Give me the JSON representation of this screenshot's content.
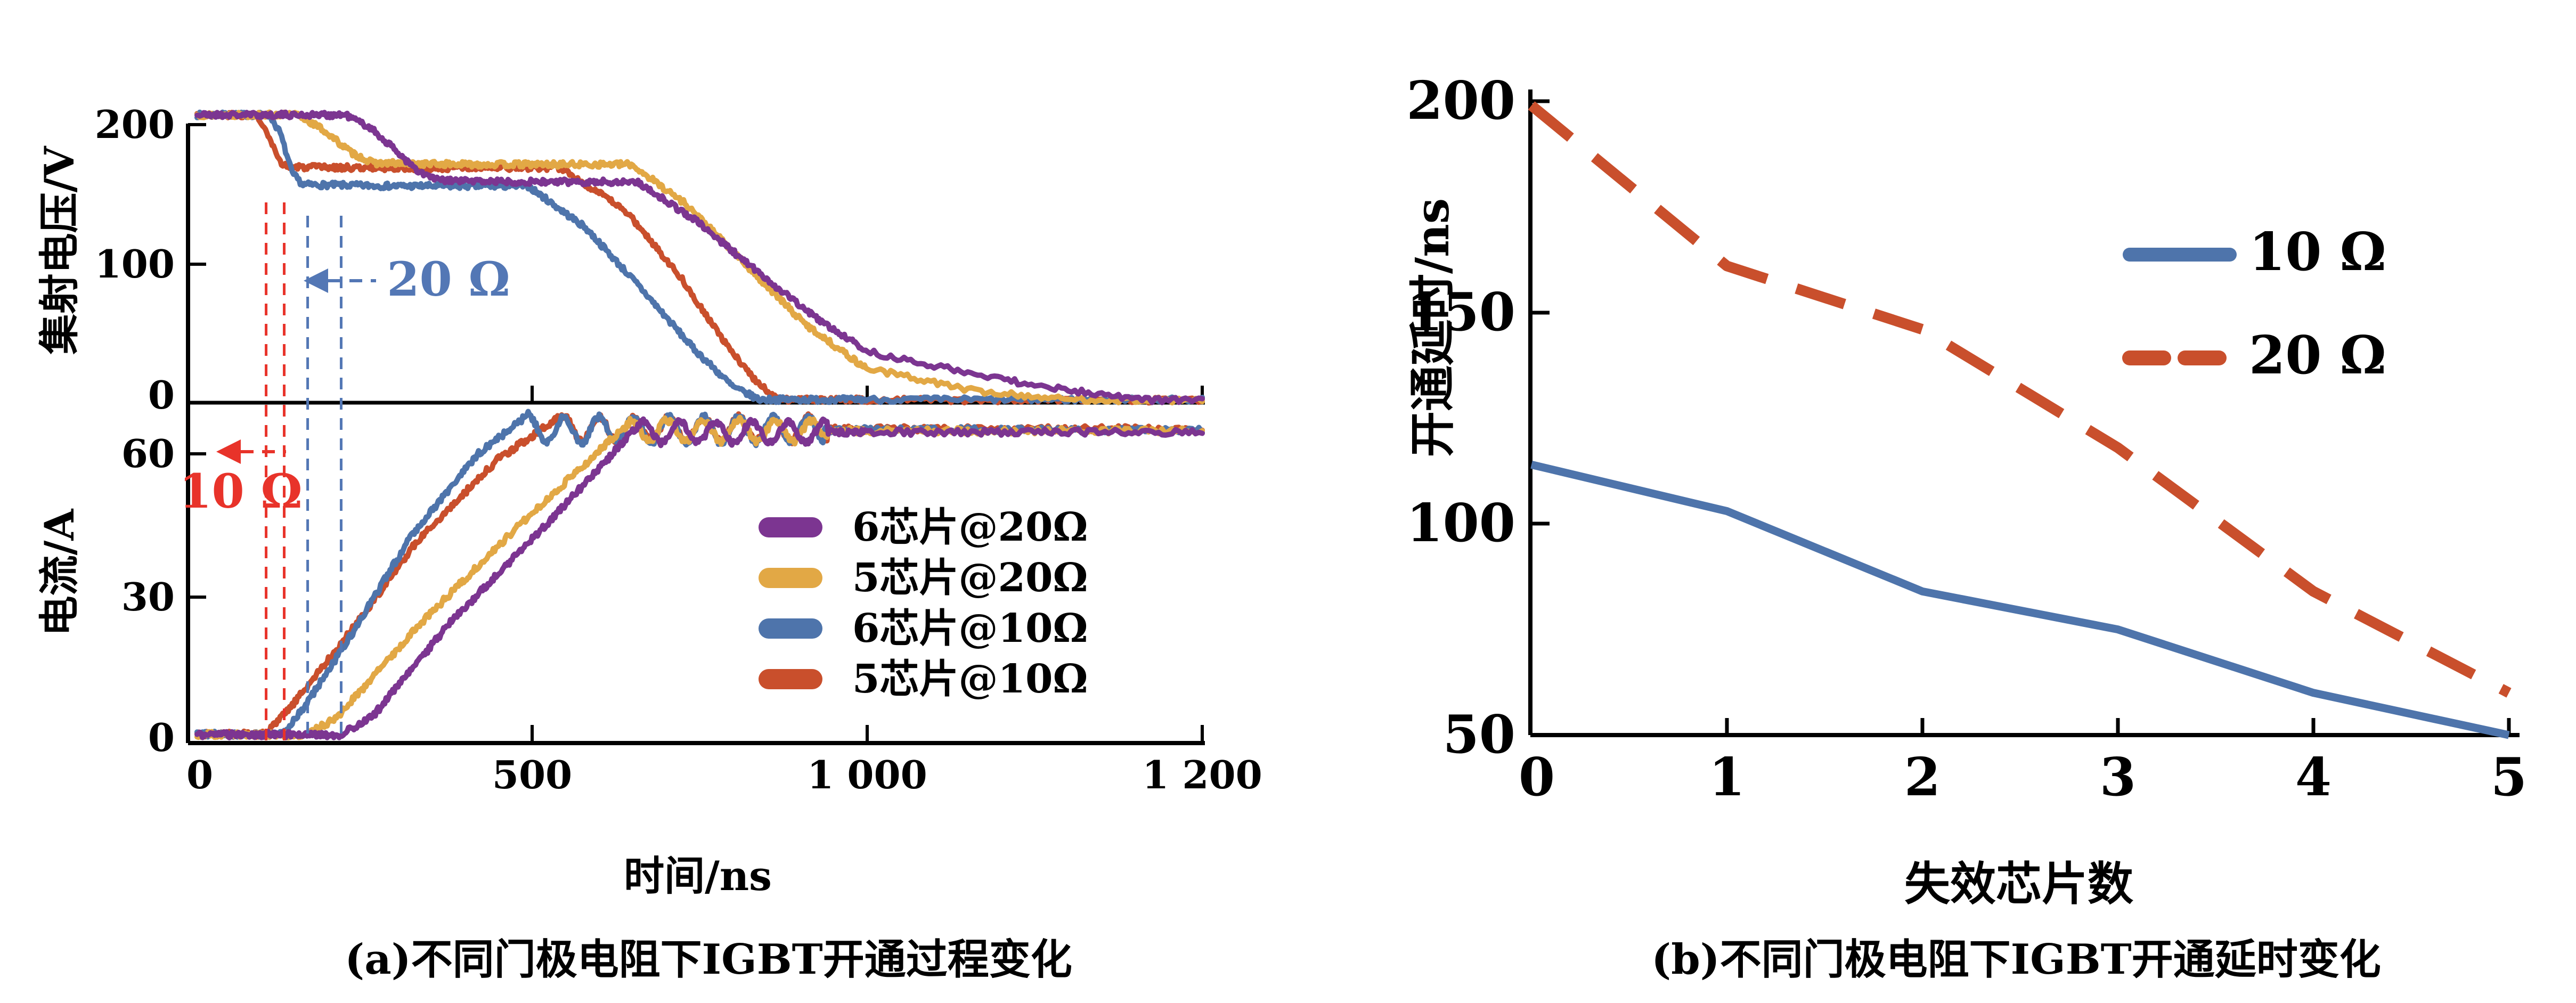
{
  "figure": {
    "type": "dual-panel scientific figure",
    "background": "#FFFFFF"
  },
  "colors": {
    "purple": "#7C3591",
    "gold": "#E2A845",
    "blue": "#4E74AB",
    "red": "#C94F2C",
    "annotation_red": "#E8332A",
    "annotation_blue": "#5377B5",
    "axis": "#000000"
  },
  "left_chart": {
    "caption": "(a)不同门极电阻下IGBT开通过程变化",
    "x_axis_label": "时间/ns",
    "voltage_axis_label": "集射电压/V",
    "current_axis_label": "电流/A",
    "voltage_tick_labels": [
      "200",
      "100",
      "0"
    ],
    "current_tick_labels": [
      "60",
      "30",
      "0"
    ],
    "x_tick_labels": [
      "0",
      "500",
      "1 000",
      "1 200"
    ],
    "legend": {
      "items": [
        {
          "label": "6芯片@20Ω",
          "color_key": "purple"
        },
        {
          "label": "5芯片@20Ω",
          "color_key": "gold"
        },
        {
          "label": "6芯片@10Ω",
          "color_key": "blue"
        },
        {
          "label": "5芯片@10Ω",
          "color_key": "red"
        }
      ]
    },
    "annotations": [
      {
        "text": "10 Ω",
        "color_key": "annotation_red",
        "marks_times_ns": [
          103,
          130
        ]
      },
      {
        "text": "20 Ω",
        "color_key": "annotation_blue",
        "marks_times_ns": [
          165,
          215
        ]
      }
    ]
  },
  "right_chart": {
    "caption": "(b)不同门极电阻下IGBT开通延时变化",
    "x_axis_label": "失效芯片数",
    "y_axis_label": "开通延时/ns",
    "y_tick_labels": [
      "200",
      "150",
      "100",
      "50"
    ],
    "x_tick_labels": [
      "0",
      "1",
      "2",
      "3",
      "4",
      "5"
    ],
    "legend": {
      "items": [
        {
          "label": "10 Ω",
          "color_key": "blue",
          "style": "solid"
        },
        {
          "label": "20 Ω",
          "color_key": "red",
          "style": "dashed"
        }
      ]
    }
  },
  "chart_data": [
    {
      "id": "igbt-turn-on-waveforms",
      "type": "line",
      "title": "(a)不同门极电阻下IGBT开通过程变化",
      "xlabel": "时间/ns",
      "x_range_ns": [
        0,
        1200
      ],
      "x_ticks_ns": [
        0,
        500,
        1000,
        1200
      ],
      "panels": [
        {
          "name": "voltage",
          "ylabel": "集射电压/V",
          "yticks": [
            0,
            100,
            200
          ],
          "ylim": [
            0,
            215
          ]
        },
        {
          "name": "current",
          "ylabel": "电流/A",
          "yticks": [
            0,
            30,
            60
          ],
          "ylim": [
            0,
            71
          ]
        }
      ],
      "series": [
        {
          "id": "5chip-10ohm-voltage",
          "name": "5芯片@10Ω",
          "panel": "voltage",
          "color_key": "red",
          "seed": 3,
          "noise": 2.0,
          "points": [
            [
              0,
              207
            ],
            [
              88,
              207
            ],
            [
              106,
              192
            ],
            [
              122,
              174
            ],
            [
              136,
              169.5
            ],
            [
              300,
              169
            ],
            [
              543,
              169
            ],
            [
              640,
              138
            ],
            [
              720,
              92
            ],
            [
              790,
              42
            ],
            [
              840,
              13
            ],
            [
              870,
              3
            ],
            [
              1200,
              2.5
            ]
          ]
        },
        {
          "id": "6chip-10ohm-voltage",
          "name": "6芯片@10Ω",
          "panel": "voltage",
          "color_key": "blue",
          "seed": 7,
          "noise": 2.0,
          "points": [
            [
              0,
              207
            ],
            [
              108,
              207
            ],
            [
              124,
              194
            ],
            [
              142,
              165
            ],
            [
              158,
              157
            ],
            [
              300,
              156
            ],
            [
              494,
              156
            ],
            [
              580,
              126
            ],
            [
              660,
              84
            ],
            [
              740,
              40
            ],
            [
              800,
              12
            ],
            [
              839,
              3
            ],
            [
              1200,
              3
            ]
          ]
        },
        {
          "id": "5chip-20ohm-voltage",
          "name": "5芯片@20Ω",
          "panel": "voltage",
          "color_key": "gold",
          "seed": 13,
          "noise": 2.0,
          "points": [
            [
              0,
              207
            ],
            [
              150,
              207
            ],
            [
              186,
              197
            ],
            [
              230,
              180
            ],
            [
              262,
              172.5
            ],
            [
              400,
              171.5
            ],
            [
              648,
              171.5
            ],
            [
              730,
              143
            ],
            [
              820,
              99
            ],
            [
              905,
              58
            ],
            [
              990,
              28
            ],
            [
              1065,
              9
            ],
            [
              1120,
              3
            ],
            [
              1200,
              2.5
            ]
          ]
        },
        {
          "id": "6chip-20ohm-voltage",
          "name": "6芯片@20Ω",
          "panel": "voltage",
          "color_key": "purple",
          "seed": 21,
          "noise": 2.0,
          "points": [
            [
              0,
              207
            ],
            [
              222,
              207
            ],
            [
              258,
              198
            ],
            [
              300,
              180
            ],
            [
              330,
              166
            ],
            [
              362,
              160
            ],
            [
              500,
              159
            ],
            [
              657,
              159
            ],
            [
              745,
              131
            ],
            [
              835,
              95
            ],
            [
              925,
              61
            ],
            [
              1015,
              33
            ],
            [
              1105,
              12
            ],
            [
              1165,
              3
            ],
            [
              1200,
              2.5
            ]
          ]
        },
        {
          "id": "5chip-10ohm-current",
          "name": "5芯片@10Ω",
          "panel": "current",
          "color_key": "red",
          "seed": 31,
          "noise": 0.65,
          "points": [
            [
              0,
              1.3
            ],
            [
              103,
              1.3
            ],
            [
              140,
              7
            ],
            [
              230,
              23
            ],
            [
              330,
              42
            ],
            [
              450,
              59
            ],
            [
              545,
              68
            ]
          ],
          "ripple": {
            "t0": 545,
            "end": 940,
            "base": 65.2,
            "amp": 2.5,
            "period": 52,
            "phase": 1.2
          }
        },
        {
          "id": "6chip-10ohm-current",
          "name": "6芯片@10Ω",
          "panel": "current",
          "color_key": "blue",
          "seed": 41,
          "noise": 0.65,
          "points": [
            [
              0,
              1.3
            ],
            [
              129,
              1.3
            ],
            [
              160,
              7
            ],
            [
              230,
              22
            ],
            [
              320,
              43
            ],
            [
              420,
              60
            ],
            [
              494,
              68.2
            ]
          ],
          "ripple": {
            "t0": 494,
            "end": 935,
            "base": 65.0,
            "amp": 2.7,
            "period": 52,
            "phase": 1.35
          }
        },
        {
          "id": "5chip-20ohm-current",
          "name": "5芯片@20Ω",
          "panel": "current",
          "color_key": "gold",
          "seed": 51,
          "noise": 0.65,
          "points": [
            [
              0,
              1.2
            ],
            [
              165,
              1.2
            ],
            [
              210,
              5
            ],
            [
              330,
              24
            ],
            [
              480,
              45
            ],
            [
              580,
              58
            ],
            [
              645,
              66.5
            ]
          ],
          "ripple": {
            "t0": 645,
            "end": 940,
            "base": 64.8,
            "amp": 2.2,
            "period": 54,
            "phase": 1.3
          }
        },
        {
          "id": "6chip-20ohm-current",
          "name": "6芯片@20Ω",
          "panel": "current",
          "color_key": "purple",
          "seed": 61,
          "noise": 0.65,
          "points": [
            [
              0,
              1.2
            ],
            [
              215,
              1.2
            ],
            [
              262,
              5
            ],
            [
              380,
              25
            ],
            [
              520,
              45
            ],
            [
              620,
              60
            ],
            [
              662,
              66.5
            ]
          ],
          "ripple": {
            "t0": 662,
            "end": 940,
            "base": 64.5,
            "amp": 2.2,
            "period": 54,
            "phase": 1.1
          }
        }
      ],
      "turn_on_delay_markers_ns": {
        "10ohm": [
          103,
          130
        ],
        "20ohm": [
          165,
          215
        ]
      }
    },
    {
      "id": "turn-on-delay-vs-failed-chips",
      "type": "line",
      "title": "(b)不同门极电阻下IGBT开通延时变化",
      "xlabel": "失效芯片数",
      "ylabel": "开通延时/ns",
      "x": [
        0,
        1,
        2,
        3,
        4,
        5
      ],
      "ylim": [
        50,
        200
      ],
      "yticks": [
        50,
        100,
        150,
        200
      ],
      "legend_position": "upper right",
      "series": [
        {
          "name": "10 Ω",
          "style": "solid",
          "color_key": "blue",
          "values": [
            114,
            103,
            84,
            75,
            60,
            50
          ]
        },
        {
          "name": "20 Ω",
          "style": "dashed",
          "color_key": "red",
          "values": [
            199,
            161,
            146,
            118,
            84,
            60
          ]
        }
      ]
    }
  ]
}
